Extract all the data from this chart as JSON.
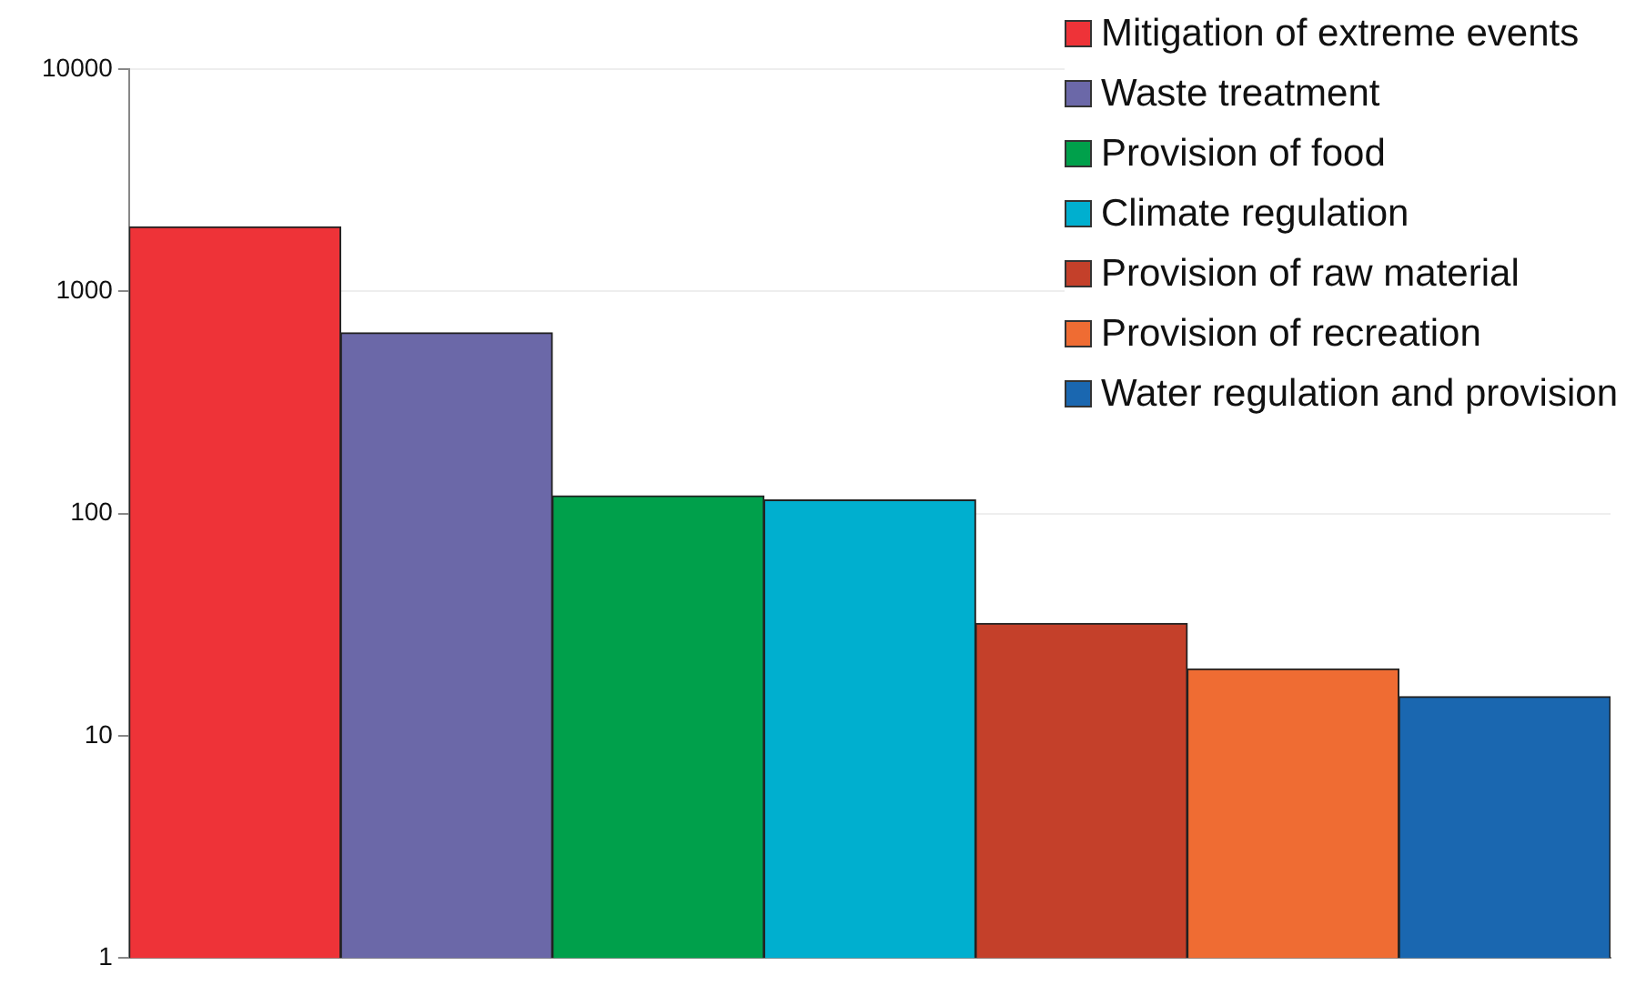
{
  "chart_data": {
    "type": "bar",
    "categories": [
      null
    ],
    "series": [
      {
        "name": "Mitigation of extreme events",
        "color": "#ee3338",
        "values": [
          1950
        ]
      },
      {
        "name": "Waste treatment",
        "color": "#6b68a8",
        "values": [
          650
        ]
      },
      {
        "name": "Provision of food",
        "color": "#00a04b",
        "values": [
          120
        ]
      },
      {
        "name": "Climate regulation",
        "color": "#00afcf",
        "values": [
          115
        ]
      },
      {
        "name": "Provision of raw material",
        "color": "#c4402a",
        "values": [
          32
        ]
      },
      {
        "name": "Provision of recreation",
        "color": "#ef6c33",
        "values": [
          20
        ]
      },
      {
        "name": "Water regulation and provision",
        "color": "#1a67b0",
        "values": [
          15
        ]
      }
    ],
    "log": true,
    "ylim": [
      1,
      10000
    ],
    "yticks": [
      1,
      10,
      100,
      1000,
      10000
    ],
    "grid": "y",
    "legend": "top right"
  }
}
